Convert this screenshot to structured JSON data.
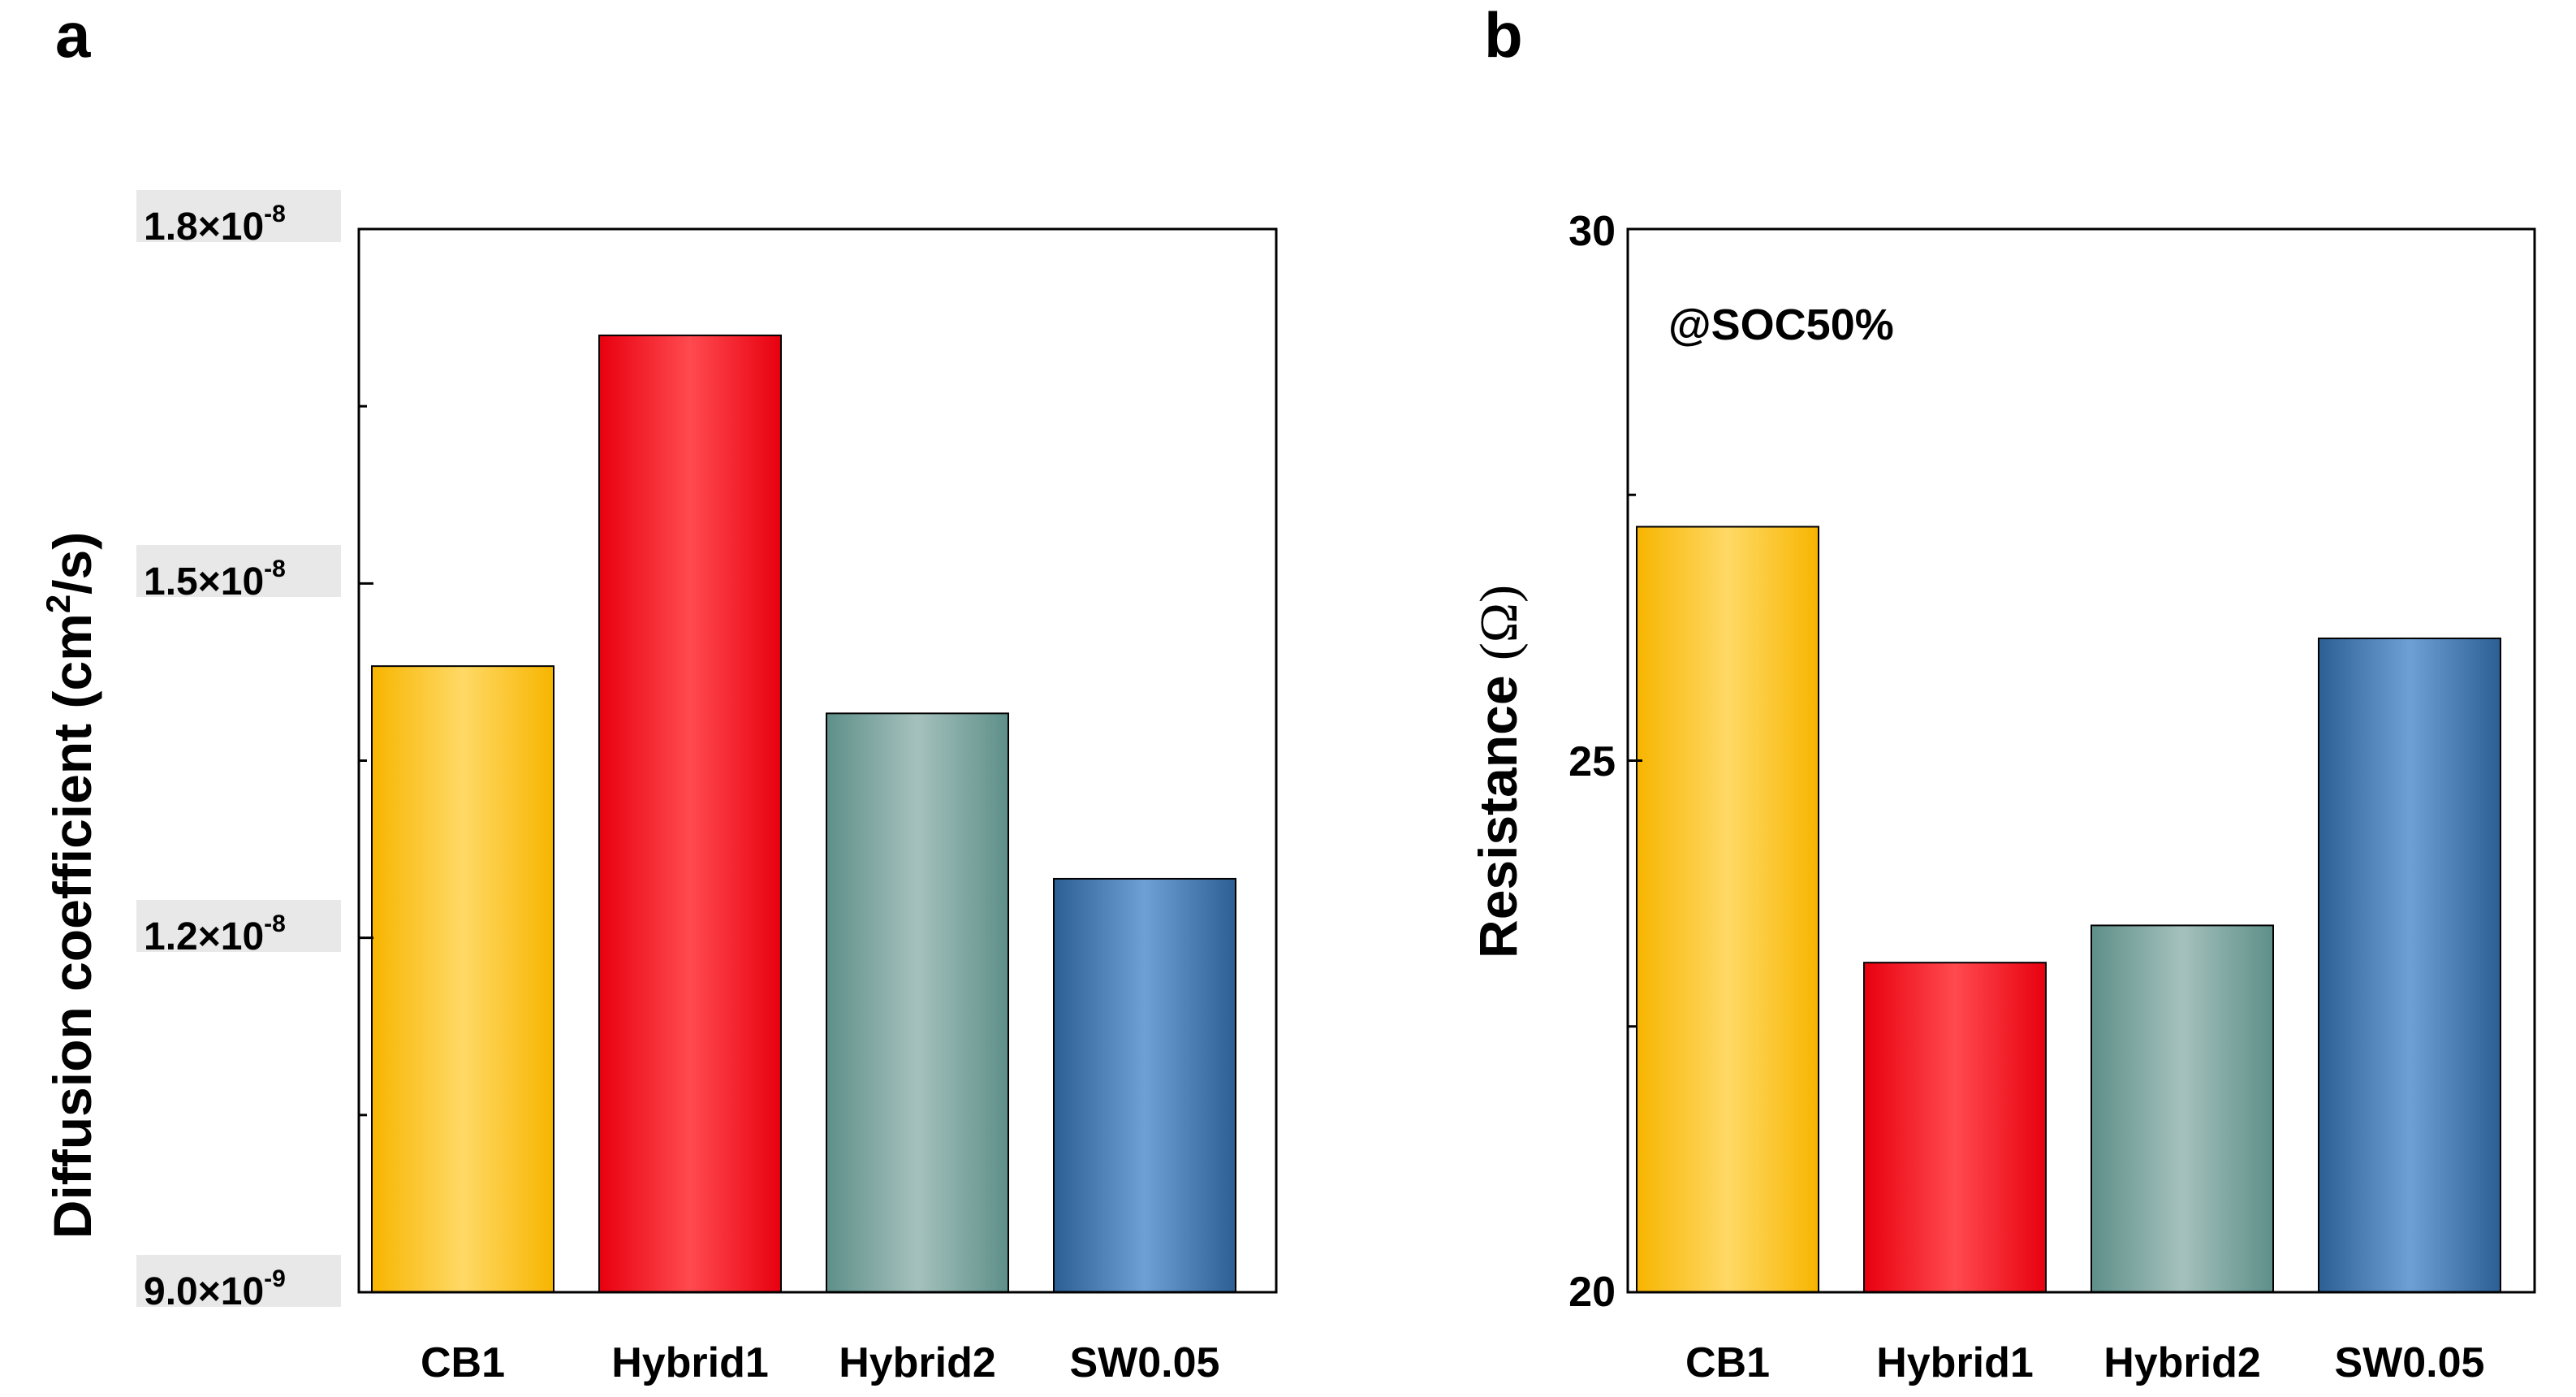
{
  "figure": {
    "panels": [
      {
        "letter": "a",
        "y_tick_labels": [
          {
            "mantissa": "9.0×10",
            "exponent": "-9"
          },
          {
            "mantissa": "1.2×10",
            "exponent": "-8"
          },
          {
            "mantissa": "1.5×10",
            "exponent": "-8"
          },
          {
            "mantissa": "1.8×10",
            "exponent": "-8"
          }
        ],
        "ylabel_main": "Diffusion coefficient (cm",
        "ylabel_sup": "2",
        "ylabel_tail": "/s)"
      },
      {
        "letter": "b",
        "annotation": "@SOC50%",
        "y_tick_labels": [
          {
            "label": "20"
          },
          {
            "label": "25"
          },
          {
            "label": "30"
          }
        ],
        "ylabel_main": "Resistance ",
        "ylabel_unit": "(Ω)"
      }
    ]
  },
  "colors": {
    "CB1": {
      "edge": "#f7b500",
      "mid": "#ffd966"
    },
    "Hybrid1": {
      "edge": "#e8000f",
      "mid": "#ff4a4f"
    },
    "Hybrid2": {
      "edge": "#5e8f89",
      "mid": "#a5c1bd"
    },
    "SW0.05": {
      "edge": "#2c5f93",
      "mid": "#6ea0d6"
    }
  },
  "chart_data": [
    {
      "type": "bar",
      "panel": "a",
      "categories": [
        "CB1",
        "Hybrid1",
        "Hybrid2",
        "SW0.05"
      ],
      "values": [
        1.43e-08,
        1.71e-08,
        1.39e-08,
        1.25e-08
      ],
      "ylabel": "Diffusion coefficient (cm2/s)",
      "ylim": [
        9e-09,
        1.8e-08
      ],
      "yticks": [
        9e-09,
        1.2e-08,
        1.5e-08,
        1.8e-08
      ],
      "yminor": [
        1.05e-08,
        1.35e-08,
        1.65e-08
      ]
    },
    {
      "type": "bar",
      "panel": "b",
      "categories": [
        "CB1",
        "Hybrid1",
        "Hybrid2",
        "SW0.05"
      ],
      "values": [
        27.2,
        23.1,
        23.45,
        26.15
      ],
      "ylabel": "Resistance (Ω)",
      "annotation": "@SOC50%",
      "ylim": [
        20,
        30
      ],
      "yticks": [
        20,
        25,
        30
      ],
      "yminor": [
        22.5,
        27.5
      ]
    }
  ]
}
